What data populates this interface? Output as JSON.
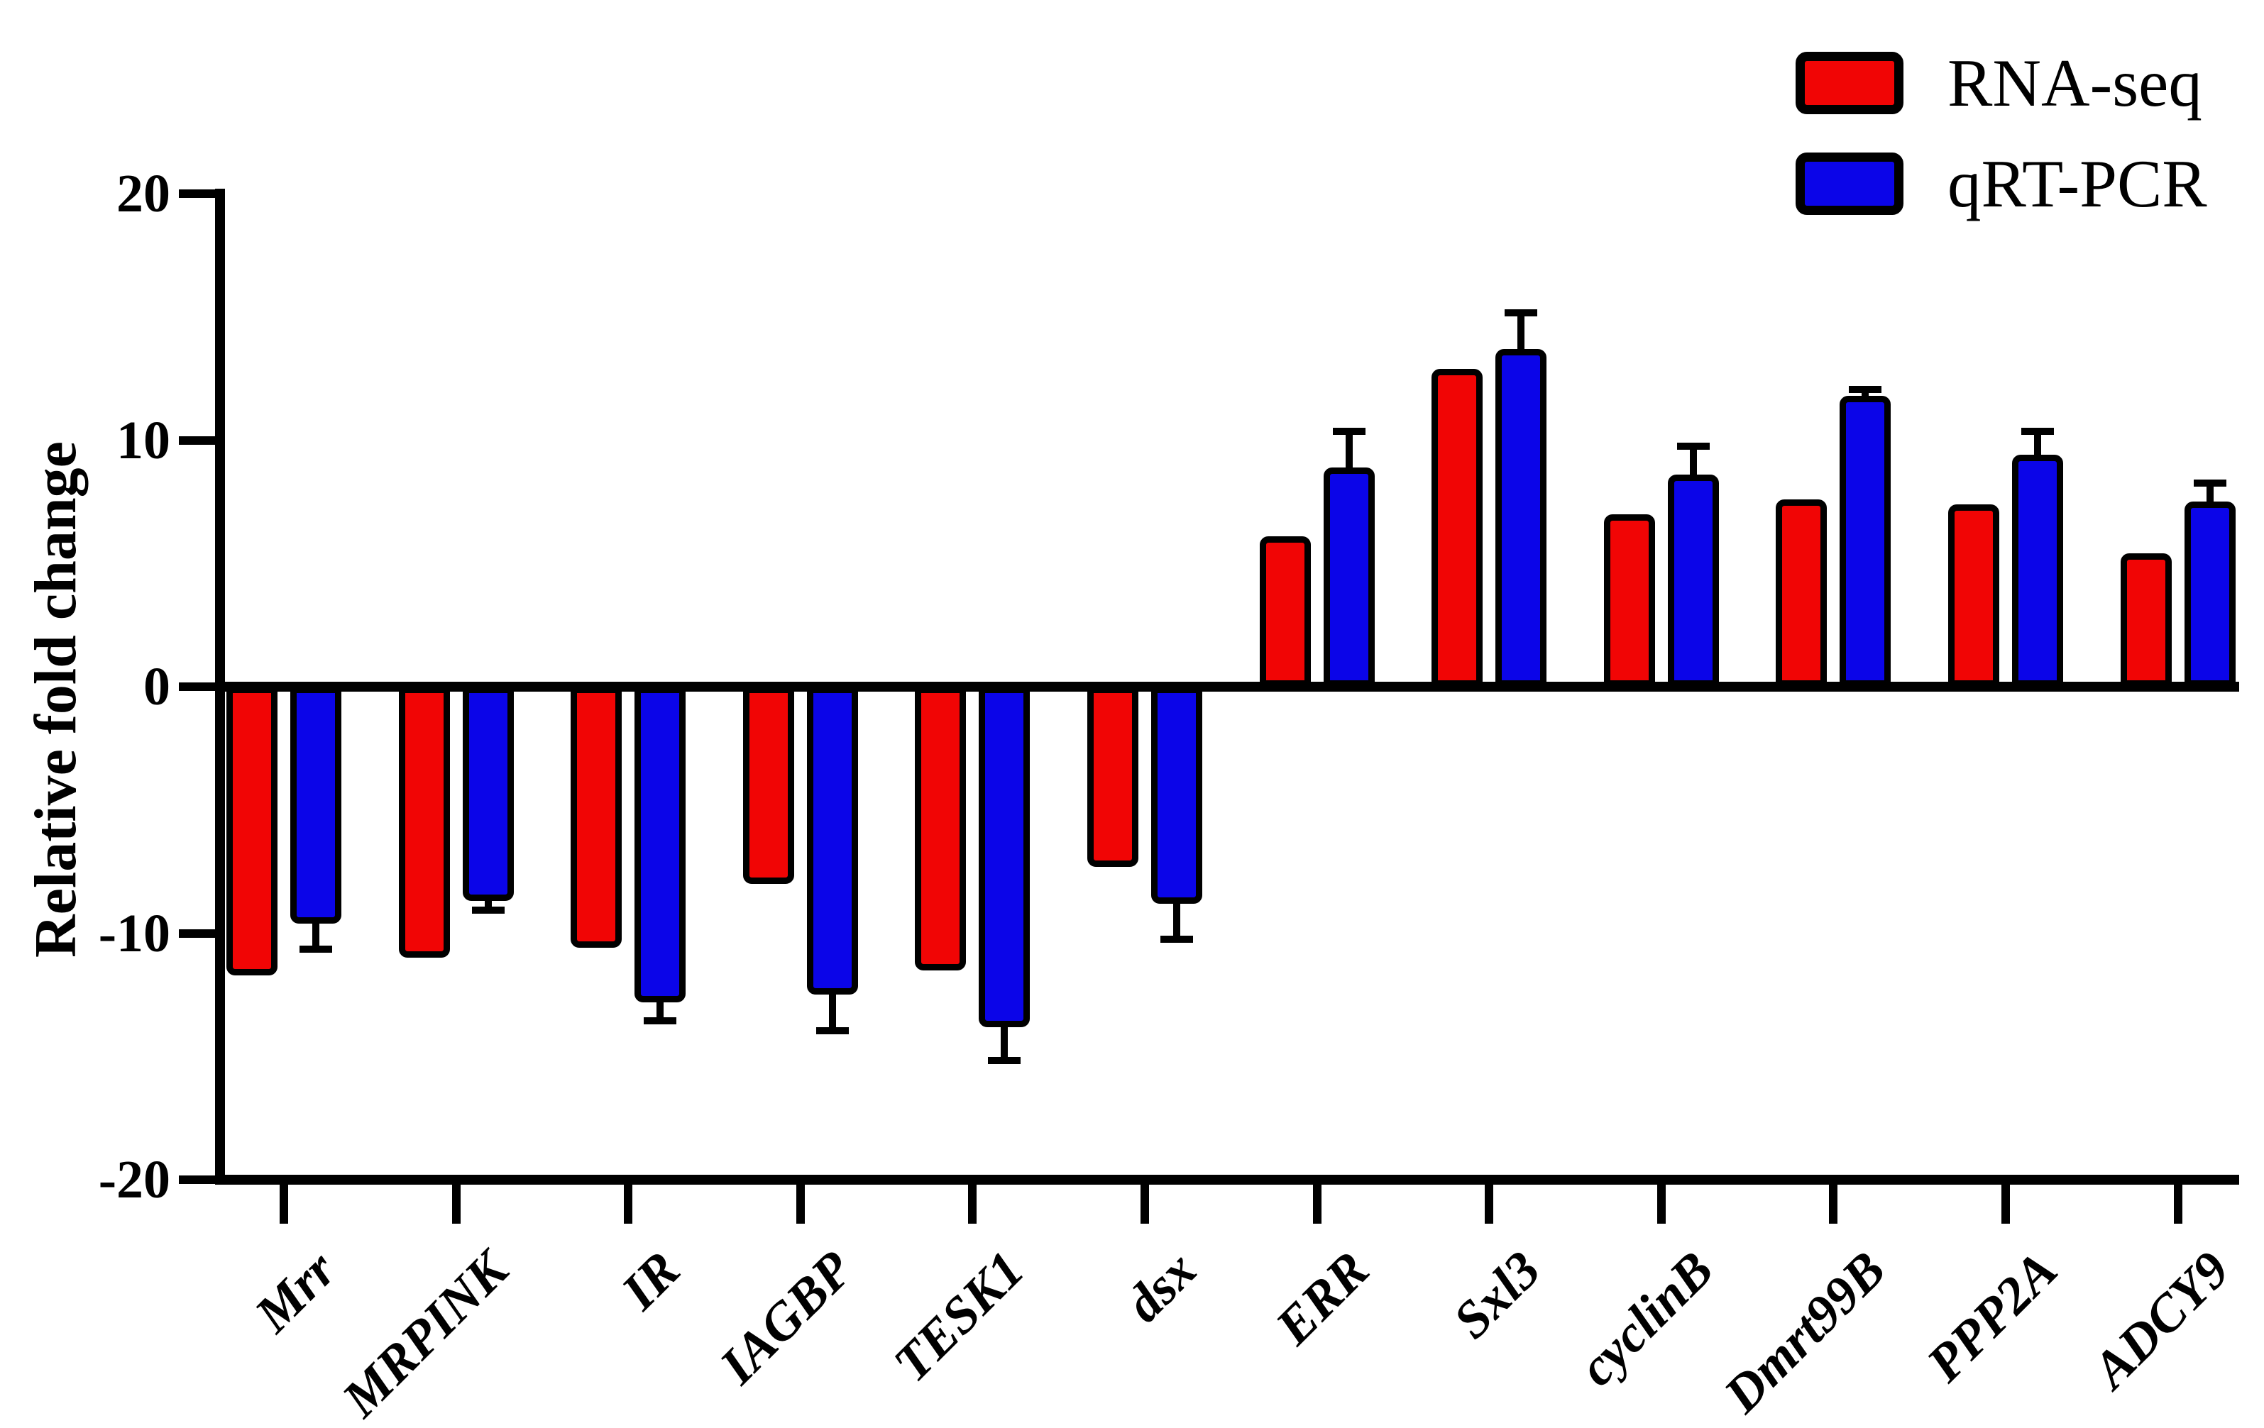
{
  "figure": {
    "background": "#ffffff"
  },
  "colors": {
    "rna_seq": "#f10505",
    "qrt_pcr": "#0b05e8",
    "axis": "#000000"
  },
  "y_axis": {
    "title": "Relative fold change"
  },
  "legend": {
    "items": [
      {
        "id": "rna-seq",
        "label": "RNA-seq",
        "color": "#f10505"
      },
      {
        "id": "qrt-pcr",
        "label": "qRT-PCR",
        "color": "#0b05e8"
      }
    ]
  },
  "chart_data": {
    "type": "bar",
    "title": "",
    "xlabel": "",
    "ylabel": "Relative fold change",
    "ylim": [
      -20,
      20
    ],
    "yticks": [
      20,
      10,
      0,
      -10,
      -20
    ],
    "grid": false,
    "legend_position": "top-right",
    "categories": [
      "Mrr",
      "MRPINK",
      "IR",
      "IAGBP",
      "TESK1",
      "dsx",
      "ERR",
      "Sxl3",
      "cyclinB",
      "Dmrt99B",
      "PPP2A",
      "ADCY9"
    ],
    "series": [
      {
        "name": "RNA-seq",
        "color": "#f10505",
        "values": [
          -11.7,
          -11.0,
          -10.6,
          -8.0,
          -11.5,
          -7.3,
          6.1,
          12.9,
          7.0,
          7.6,
          7.4,
          5.4
        ]
      },
      {
        "name": "qRT-PCR",
        "color": "#0b05e8",
        "values": [
          -9.6,
          -8.7,
          -12.8,
          -12.5,
          -13.8,
          -8.8,
          8.9,
          13.7,
          8.6,
          11.8,
          9.4,
          7.5
        ],
        "errors": [
          1.2,
          0.5,
          0.9,
          1.6,
          1.5,
          1.6,
          1.6,
          1.6,
          1.3,
          0.4,
          1.1,
          0.9
        ],
        "error_direction": "away-from-zero"
      }
    ]
  }
}
